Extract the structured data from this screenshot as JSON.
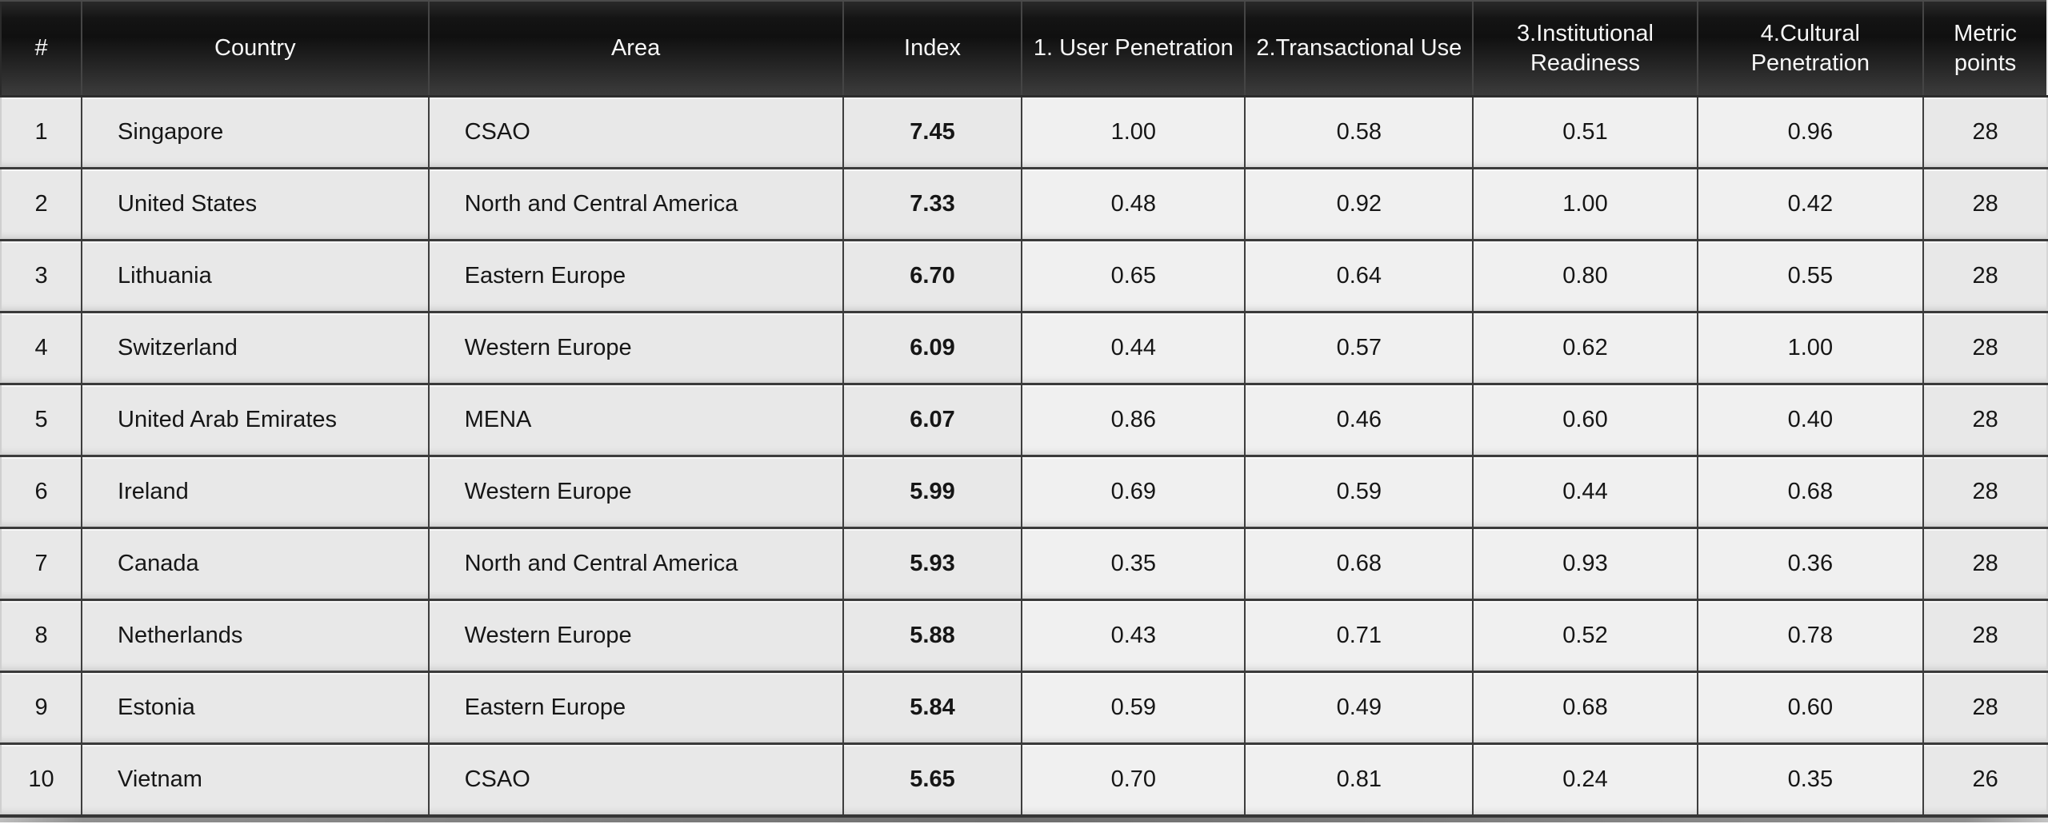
{
  "chart_data": {
    "type": "table",
    "columns": [
      "#",
      "Country",
      "Area",
      "Index",
      "1. User Penetration",
      "2.Transactional Use",
      "3.Institutional Readiness",
      "4.Cultural Penetration",
      "Metric points"
    ],
    "rows": [
      [
        "1",
        "Singapore",
        "CSAO",
        "7.45",
        "1.00",
        "0.58",
        "0.51",
        "0.96",
        "28"
      ],
      [
        "2",
        "United States",
        "North and Central America",
        "7.33",
        "0.48",
        "0.92",
        "1.00",
        "0.42",
        "28"
      ],
      [
        "3",
        "Lithuania",
        "Eastern Europe",
        "6.70",
        "0.65",
        "0.64",
        "0.80",
        "0.55",
        "28"
      ],
      [
        "4",
        "Switzerland",
        "Western Europe",
        "6.09",
        "0.44",
        "0.57",
        "0.62",
        "1.00",
        "28"
      ],
      [
        "5",
        "United Arab Emirates",
        "MENA",
        "6.07",
        "0.86",
        "0.46",
        "0.60",
        "0.40",
        "28"
      ],
      [
        "6",
        "Ireland",
        "Western Europe",
        "5.99",
        "0.69",
        "0.59",
        "0.44",
        "0.68",
        "28"
      ],
      [
        "7",
        "Canada",
        "North and Central America",
        "5.93",
        "0.35",
        "0.68",
        "0.93",
        "0.36",
        "28"
      ],
      [
        "8",
        "Netherlands",
        "Western Europe",
        "5.88",
        "0.43",
        "0.71",
        "0.52",
        "0.78",
        "28"
      ],
      [
        "9",
        "Estonia",
        "Eastern Europe",
        "5.84",
        "0.59",
        "0.49",
        "0.68",
        "0.60",
        "28"
      ],
      [
        "10",
        "Vietnam",
        "CSAO",
        "5.65",
        "0.70",
        "0.81",
        "0.24",
        "0.35",
        "26"
      ]
    ],
    "layout": {
      "grid": true,
      "header_background_gradient": [
        "#141414",
        "#3c3c3c"
      ],
      "row_background": "#e8e8e8",
      "metric_column_background": "#f0f0f0",
      "border_color": "#3e3e3e",
      "header_text_color": "#f7f7f7",
      "body_text_color": "#161616"
    }
  }
}
